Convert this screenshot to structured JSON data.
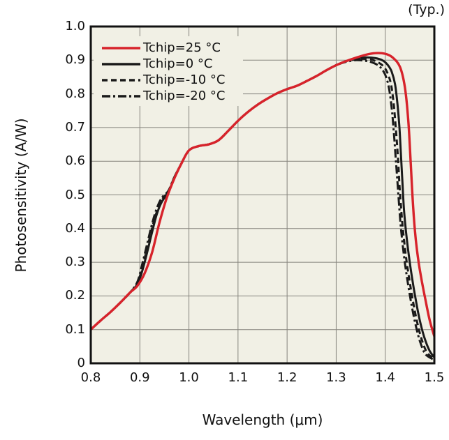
{
  "figure": {
    "typ_label": "(Typ.)",
    "colors": {
      "page_bg": "#ffffff",
      "plot_bg": "#f1f0e5",
      "grid": "#85837c",
      "frame": "#111111",
      "red": "#d7232b",
      "black": "#1a1a1a",
      "text": "#111111"
    }
  },
  "chart_data": {
    "type": "line",
    "title": "(Typ.)",
    "xlabel": "Wavelength (μm)",
    "ylabel": "Photosensitivity (A/W)",
    "xlim": [
      0.8,
      1.5
    ],
    "ylim": [
      0,
      1.0
    ],
    "grid": true,
    "legend_position": "top-left",
    "x_ticks": [
      "0.8",
      "0.9",
      "1.0",
      "1.1",
      "1.2",
      "1.3",
      "1.4",
      "1.5"
    ],
    "y_ticks": [
      "0",
      "0.1",
      "0.2",
      "0.3",
      "0.4",
      "0.5",
      "0.6",
      "0.7",
      "0.8",
      "0.9",
      "1.0"
    ],
    "series": [
      {
        "name": "Tchip=0 °C",
        "temperature_c": 0,
        "color": "#1a1a1a",
        "line_style": "solid",
        "points": [
          [
            0.8,
            0.1
          ],
          [
            0.82,
            0.127
          ],
          [
            0.84,
            0.152
          ],
          [
            0.86,
            0.18
          ],
          [
            0.88,
            0.21
          ],
          [
            0.895,
            0.235
          ],
          [
            0.905,
            0.275
          ],
          [
            0.915,
            0.33
          ],
          [
            0.925,
            0.39
          ],
          [
            0.935,
            0.445
          ],
          [
            0.945,
            0.48
          ],
          [
            0.958,
            0.508
          ],
          [
            0.97,
            0.55
          ],
          [
            0.985,
            0.594
          ],
          [
            1.0,
            0.632
          ],
          [
            1.02,
            0.645
          ],
          [
            1.04,
            0.65
          ],
          [
            1.06,
            0.662
          ],
          [
            1.08,
            0.69
          ],
          [
            1.1,
            0.72
          ],
          [
            1.12,
            0.746
          ],
          [
            1.14,
            0.768
          ],
          [
            1.16,
            0.786
          ],
          [
            1.18,
            0.802
          ],
          [
            1.2,
            0.814
          ],
          [
            1.22,
            0.824
          ],
          [
            1.24,
            0.838
          ],
          [
            1.26,
            0.853
          ],
          [
            1.28,
            0.87
          ],
          [
            1.3,
            0.885
          ],
          [
            1.32,
            0.897
          ],
          [
            1.34,
            0.904
          ],
          [
            1.36,
            0.908
          ],
          [
            1.38,
            0.906
          ],
          [
            1.395,
            0.899
          ],
          [
            1.405,
            0.886
          ],
          [
            1.413,
            0.866
          ],
          [
            1.42,
            0.828
          ],
          [
            1.425,
            0.768
          ],
          [
            1.429,
            0.698
          ],
          [
            1.432,
            0.618
          ],
          [
            1.435,
            0.538
          ],
          [
            1.438,
            0.46
          ],
          [
            1.442,
            0.395
          ],
          [
            1.448,
            0.32
          ],
          [
            1.455,
            0.25
          ],
          [
            1.462,
            0.19
          ],
          [
            1.47,
            0.13
          ],
          [
            1.479,
            0.08
          ],
          [
            1.49,
            0.038
          ],
          [
            1.5,
            0.018
          ]
        ]
      },
      {
        "name": "Tchip=-10 °C",
        "temperature_c": -10,
        "color": "#1a1a1a",
        "line_style": "dashed",
        "points": [
          [
            0.8,
            0.1
          ],
          [
            0.82,
            0.127
          ],
          [
            0.84,
            0.152
          ],
          [
            0.86,
            0.18
          ],
          [
            0.88,
            0.21
          ],
          [
            0.895,
            0.238
          ],
          [
            0.905,
            0.285
          ],
          [
            0.915,
            0.342
          ],
          [
            0.925,
            0.402
          ],
          [
            0.935,
            0.452
          ],
          [
            0.945,
            0.486
          ],
          [
            0.958,
            0.51
          ],
          [
            0.97,
            0.551
          ],
          [
            0.985,
            0.594
          ],
          [
            1.0,
            0.632
          ],
          [
            1.02,
            0.645
          ],
          [
            1.04,
            0.65
          ],
          [
            1.06,
            0.662
          ],
          [
            1.08,
            0.69
          ],
          [
            1.1,
            0.72
          ],
          [
            1.12,
            0.746
          ],
          [
            1.14,
            0.768
          ],
          [
            1.16,
            0.786
          ],
          [
            1.18,
            0.802
          ],
          [
            1.2,
            0.814
          ],
          [
            1.22,
            0.824
          ],
          [
            1.24,
            0.838
          ],
          [
            1.26,
            0.853
          ],
          [
            1.28,
            0.87
          ],
          [
            1.3,
            0.885
          ],
          [
            1.32,
            0.897
          ],
          [
            1.33,
            0.9
          ],
          [
            1.35,
            0.904
          ],
          [
            1.37,
            0.902
          ],
          [
            1.385,
            0.894
          ],
          [
            1.398,
            0.879
          ],
          [
            1.407,
            0.853
          ],
          [
            1.413,
            0.818
          ],
          [
            1.418,
            0.758
          ],
          [
            1.422,
            0.688
          ],
          [
            1.426,
            0.608
          ],
          [
            1.429,
            0.528
          ],
          [
            1.433,
            0.448
          ],
          [
            1.437,
            0.383
          ],
          [
            1.443,
            0.308
          ],
          [
            1.45,
            0.24
          ],
          [
            1.457,
            0.18
          ],
          [
            1.465,
            0.122
          ],
          [
            1.474,
            0.072
          ],
          [
            1.485,
            0.032
          ],
          [
            1.5,
            0.013
          ]
        ]
      },
      {
        "name": "Tchip=-20 °C",
        "temperature_c": -20,
        "color": "#1a1a1a",
        "line_style": "dashdot",
        "points": [
          [
            0.8,
            0.1
          ],
          [
            0.82,
            0.127
          ],
          [
            0.84,
            0.152
          ],
          [
            0.86,
            0.18
          ],
          [
            0.88,
            0.21
          ],
          [
            0.895,
            0.242
          ],
          [
            0.905,
            0.295
          ],
          [
            0.915,
            0.355
          ],
          [
            0.925,
            0.415
          ],
          [
            0.935,
            0.462
          ],
          [
            0.945,
            0.492
          ],
          [
            0.958,
            0.512
          ],
          [
            0.97,
            0.552
          ],
          [
            0.985,
            0.594
          ],
          [
            1.0,
            0.632
          ],
          [
            1.02,
            0.645
          ],
          [
            1.04,
            0.65
          ],
          [
            1.06,
            0.662
          ],
          [
            1.08,
            0.69
          ],
          [
            1.1,
            0.72
          ],
          [
            1.12,
            0.746
          ],
          [
            1.14,
            0.768
          ],
          [
            1.16,
            0.786
          ],
          [
            1.18,
            0.802
          ],
          [
            1.2,
            0.814
          ],
          [
            1.22,
            0.824
          ],
          [
            1.24,
            0.838
          ],
          [
            1.26,
            0.853
          ],
          [
            1.28,
            0.87
          ],
          [
            1.3,
            0.885
          ],
          [
            1.32,
            0.895
          ],
          [
            1.34,
            0.9
          ],
          [
            1.355,
            0.899
          ],
          [
            1.37,
            0.895
          ],
          [
            1.385,
            0.885
          ],
          [
            1.395,
            0.87
          ],
          [
            1.403,
            0.845
          ],
          [
            1.409,
            0.805
          ],
          [
            1.414,
            0.745
          ],
          [
            1.418,
            0.675
          ],
          [
            1.422,
            0.595
          ],
          [
            1.426,
            0.515
          ],
          [
            1.43,
            0.435
          ],
          [
            1.434,
            0.372
          ],
          [
            1.44,
            0.298
          ],
          [
            1.447,
            0.23
          ],
          [
            1.454,
            0.17
          ],
          [
            1.462,
            0.113
          ],
          [
            1.471,
            0.064
          ],
          [
            1.482,
            0.027
          ],
          [
            1.5,
            0.01
          ]
        ]
      },
      {
        "name": "Tchip=25 °C",
        "temperature_c": 25,
        "color": "#d7232b",
        "line_style": "solid",
        "points": [
          [
            0.8,
            0.1
          ],
          [
            0.82,
            0.127
          ],
          [
            0.84,
            0.152
          ],
          [
            0.86,
            0.18
          ],
          [
            0.88,
            0.21
          ],
          [
            0.895,
            0.23
          ],
          [
            0.91,
            0.268
          ],
          [
            0.925,
            0.33
          ],
          [
            0.94,
            0.418
          ],
          [
            0.955,
            0.492
          ],
          [
            0.97,
            0.548
          ],
          [
            0.985,
            0.594
          ],
          [
            1.0,
            0.632
          ],
          [
            1.02,
            0.645
          ],
          [
            1.04,
            0.65
          ],
          [
            1.06,
            0.662
          ],
          [
            1.08,
            0.69
          ],
          [
            1.1,
            0.72
          ],
          [
            1.12,
            0.746
          ],
          [
            1.14,
            0.768
          ],
          [
            1.16,
            0.786
          ],
          [
            1.18,
            0.802
          ],
          [
            1.2,
            0.814
          ],
          [
            1.22,
            0.824
          ],
          [
            1.24,
            0.838
          ],
          [
            1.26,
            0.853
          ],
          [
            1.28,
            0.87
          ],
          [
            1.3,
            0.885
          ],
          [
            1.32,
            0.897
          ],
          [
            1.34,
            0.907
          ],
          [
            1.36,
            0.916
          ],
          [
            1.38,
            0.921
          ],
          [
            1.4,
            0.919
          ],
          [
            1.415,
            0.908
          ],
          [
            1.43,
            0.88
          ],
          [
            1.44,
            0.82
          ],
          [
            1.447,
            0.72
          ],
          [
            1.452,
            0.59
          ],
          [
            1.457,
            0.46
          ],
          [
            1.462,
            0.37
          ],
          [
            1.468,
            0.3
          ],
          [
            1.475,
            0.24
          ],
          [
            1.483,
            0.18
          ],
          [
            1.491,
            0.125
          ],
          [
            1.5,
            0.08
          ]
        ]
      }
    ],
    "legend_order": [
      3,
      0,
      1,
      2
    ]
  }
}
